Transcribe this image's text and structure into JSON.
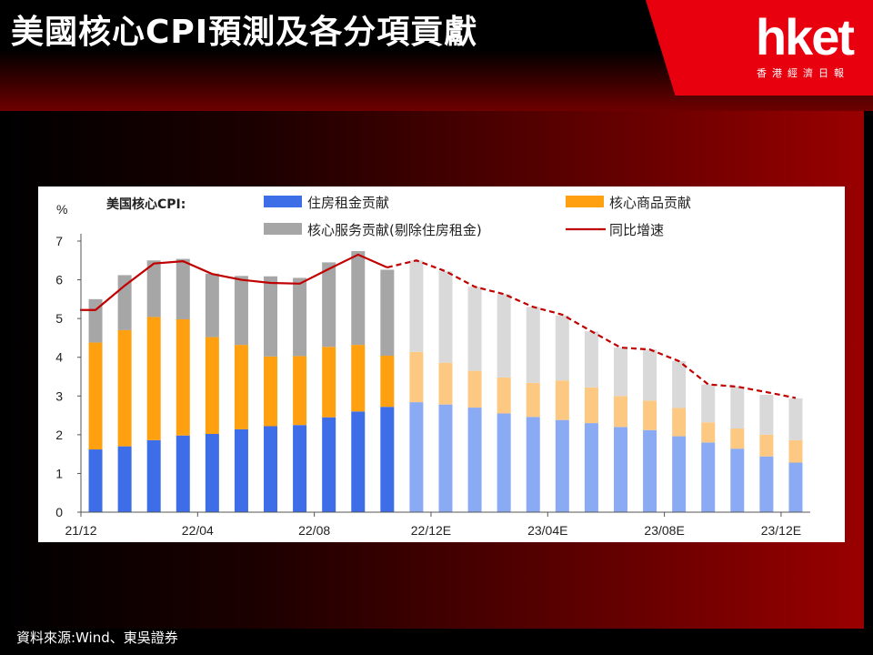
{
  "header": {
    "title": "美國核心CPI預測及各分項貢獻",
    "logo": "hket",
    "logo_sub": "香港經濟日報"
  },
  "source": "資料來源:Wind、東吳證券",
  "colors": {
    "housing": "#3d6ee8",
    "housing_forecast": "#8aaaf4",
    "goods": "#ffa010",
    "goods_forecast": "#fcc882",
    "services": "#a6a6a6",
    "services_forecast": "#d9d9d9",
    "line": "#c00000",
    "brand": "#e8000f"
  },
  "chart_data": {
    "type": "bar",
    "stacked": true,
    "legend_title": "美国核心CPI:",
    "ylabel": "%",
    "ylim": [
      0,
      7
    ],
    "yticks": [
      0,
      1,
      2,
      3,
      4,
      5,
      6,
      7
    ],
    "x_tick_labels": [
      {
        "index": 0,
        "label": "21/12"
      },
      {
        "index": 4,
        "label": "22/04"
      },
      {
        "index": 8,
        "label": "22/08"
      },
      {
        "index": 12,
        "label": "22/12E"
      },
      {
        "index": 16,
        "label": "23/04E"
      },
      {
        "index": 20,
        "label": "23/08E"
      },
      {
        "index": 24,
        "label": "23/12E"
      }
    ],
    "forecast_start_index": 11,
    "series": [
      {
        "name": "住房租金贡献",
        "kind": "bar",
        "values": [
          1.62,
          1.7,
          1.86,
          1.98,
          2.02,
          2.14,
          2.22,
          2.25,
          2.45,
          2.6,
          2.72,
          2.84,
          2.78,
          2.7,
          2.55,
          2.46,
          2.38,
          2.3,
          2.2,
          2.12,
          1.96,
          1.8,
          1.64,
          1.44,
          1.28
        ]
      },
      {
        "name": "核心商品贡献",
        "kind": "bar",
        "values": [
          2.76,
          3.0,
          3.18,
          3.0,
          2.5,
          2.18,
          1.8,
          1.78,
          1.82,
          1.72,
          1.32,
          1.3,
          1.08,
          0.95,
          0.93,
          0.88,
          1.02,
          0.92,
          0.8,
          0.76,
          0.73,
          0.52,
          0.52,
          0.56,
          0.58
        ]
      },
      {
        "name": "核心服务贡献(剔除住房租金)",
        "kind": "bar",
        "values": [
          1.12,
          1.42,
          1.46,
          1.56,
          1.64,
          1.78,
          2.07,
          2.02,
          2.18,
          2.42,
          2.22,
          2.36,
          2.36,
          2.17,
          2.15,
          1.96,
          1.68,
          1.45,
          1.25,
          1.32,
          1.21,
          0.98,
          1.08,
          1.03,
          1.08
        ]
      },
      {
        "name": "同比增速",
        "kind": "line",
        "values": [
          5.22,
          5.85,
          6.42,
          6.48,
          6.15,
          6.0,
          5.92,
          5.9,
          6.28,
          6.65,
          6.32,
          6.5,
          6.22,
          5.82,
          5.63,
          5.3,
          5.1,
          4.67,
          4.25,
          4.2,
          3.9,
          3.3,
          3.24,
          3.1,
          2.95
        ]
      }
    ]
  }
}
